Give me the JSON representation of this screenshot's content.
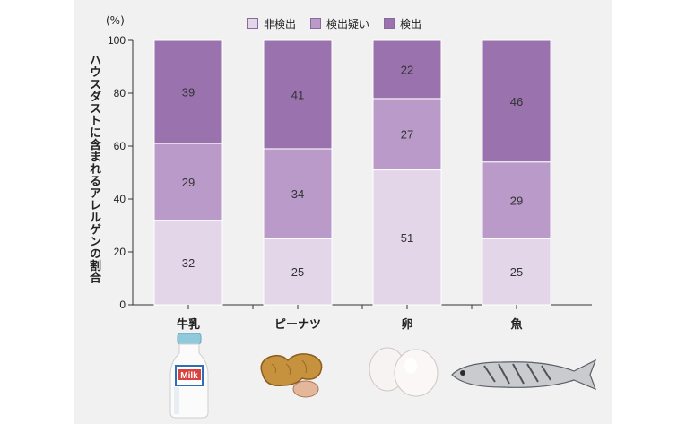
{
  "legend": {
    "items": [
      {
        "label": "非検出",
        "color": "#e3d6e9"
      },
      {
        "label": "検出疑い",
        "color": "#b99ac8"
      },
      {
        "label": "検出",
        "color": "#9a72ae"
      }
    ]
  },
  "unit_label": "(%)",
  "ylabel": "ハウスダストに含まれるアレルゲンの割合",
  "foods": [
    {
      "name": "milk-bottle",
      "label": "Milk"
    },
    {
      "name": "peanuts"
    },
    {
      "name": "eggs"
    },
    {
      "name": "fish"
    }
  ],
  "chart_data": {
    "type": "bar",
    "stacked": true,
    "categories": [
      "牛乳",
      "ピーナツ",
      "卵",
      "魚"
    ],
    "series": [
      {
        "name": "非検出",
        "values": [
          32,
          25,
          51,
          25
        ],
        "color": "#e3d6e9"
      },
      {
        "name": "検出疑い",
        "values": [
          29,
          34,
          27,
          29
        ],
        "color": "#b99ac8"
      },
      {
        "name": "検出",
        "values": [
          39,
          41,
          22,
          46
        ],
        "color": "#9a72ae"
      }
    ],
    "ylim": [
      0,
      100
    ],
    "yticks": [
      0,
      20,
      40,
      60,
      80,
      100
    ],
    "ylabel": "ハウスダストに含まれるアレルゲンの割合",
    "legend_position": "top",
    "grid": false
  }
}
